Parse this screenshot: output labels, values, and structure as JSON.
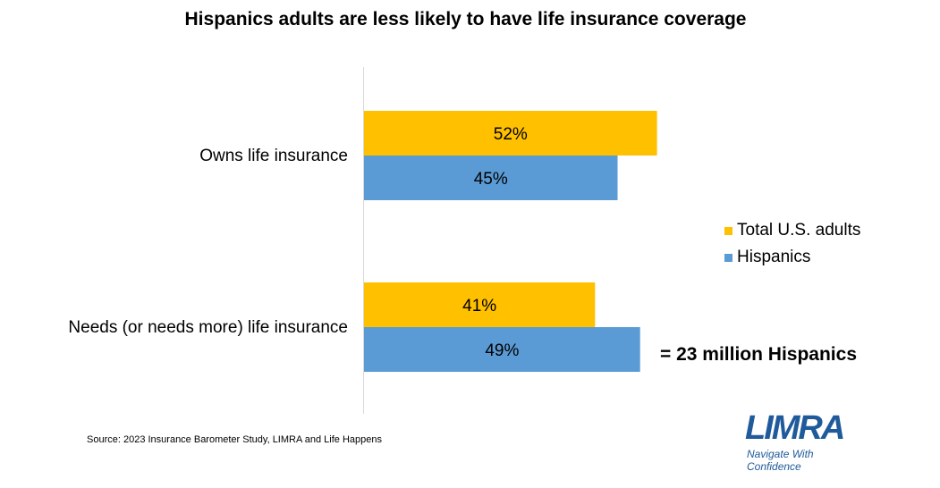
{
  "chart_data": {
    "type": "bar",
    "orientation": "horizontal",
    "title": "Hispanics adults are less likely to have life insurance coverage",
    "categories": [
      "Owns life insurance",
      "Needs (or needs more) life insurance"
    ],
    "series": [
      {
        "name": "Total U.S. adults",
        "color": "#FFC000",
        "values": [
          52,
          41
        ],
        "labels": [
          "52%",
          "41%"
        ]
      },
      {
        "name": "Hispanics",
        "color": "#5B9BD5",
        "values": [
          45,
          49
        ],
        "labels": [
          "45%",
          "49%"
        ]
      }
    ],
    "xlim": [
      0,
      100
    ],
    "grid": false,
    "legend_position": "right"
  },
  "annotation": "= 23 million Hispanics",
  "source": "Source: 2023 Insurance Barometer Study, LIMRA and Life Happens",
  "logo": {
    "wordmark": "LIMRA",
    "tagline": "Navigate With Confidence"
  }
}
